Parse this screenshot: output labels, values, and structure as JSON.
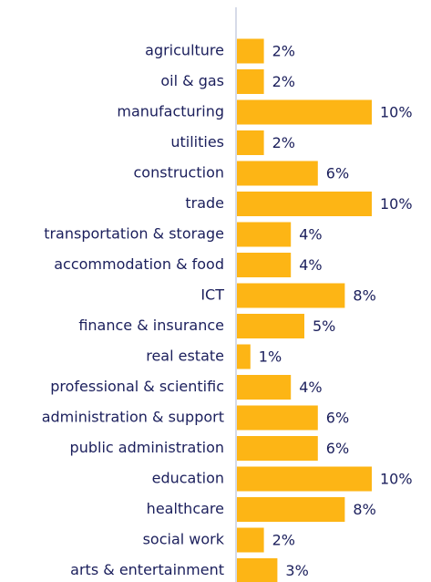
{
  "chart_data": {
    "type": "bar",
    "orientation": "horizontal",
    "categories": [
      "agriculture",
      "oil & gas",
      "manufacturing",
      "utilities",
      "construction",
      "trade",
      "transportation & storage",
      "accommodation & food",
      "ICT",
      "finance & insurance",
      "real estate",
      "professional & scientific",
      "administration & support",
      "public administration",
      "education",
      "healthcare",
      "social work",
      "arts & entertainment"
    ],
    "values": [
      2,
      2,
      10,
      2,
      6,
      10,
      4,
      4,
      8,
      5,
      1,
      4,
      6,
      6,
      10,
      8,
      2,
      3
    ],
    "value_labels": [
      "2%",
      "2%",
      "10%",
      "2%",
      "6%",
      "10%",
      "4%",
      "4%",
      "8%",
      "5%",
      "1%",
      "4%",
      "6%",
      "6%",
      "10%",
      "8%",
      "2%",
      "3%"
    ],
    "color": "#fdb515"
  }
}
